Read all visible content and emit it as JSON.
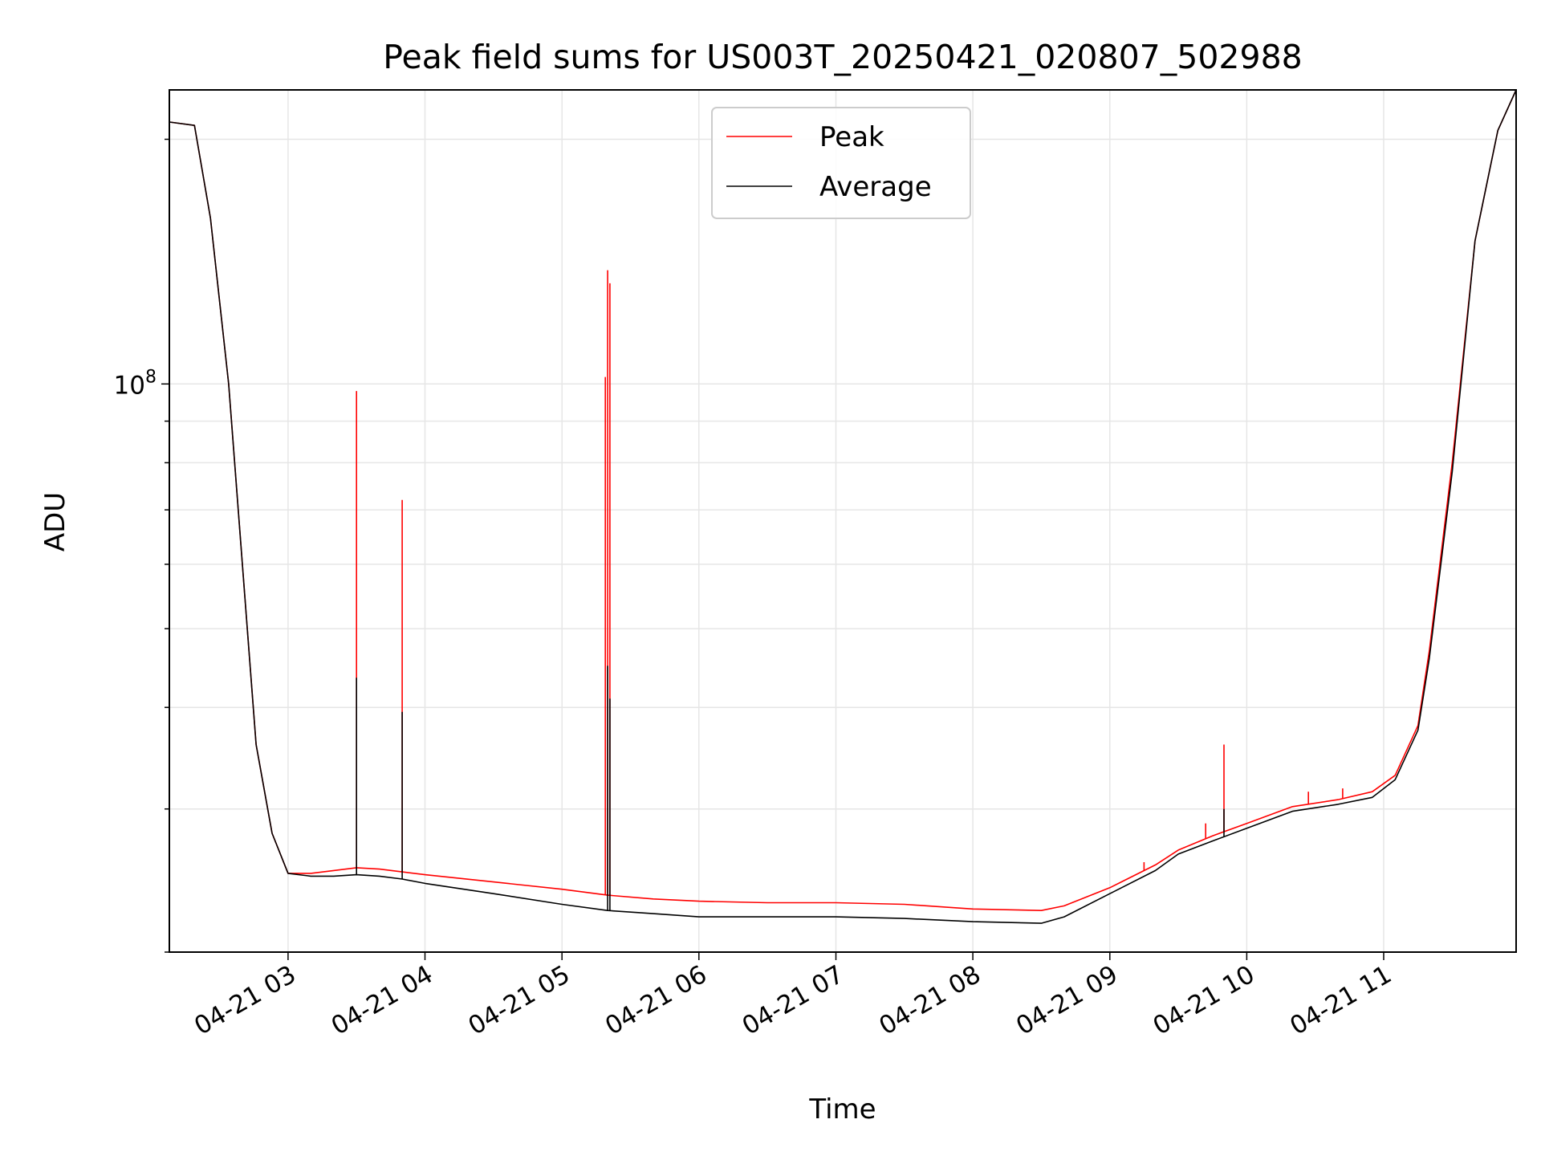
{
  "chart_data": {
    "type": "line",
    "title": "Peak field sums for US003T_20250421_020807_502988",
    "xlabel": "Time",
    "ylabel": "ADU",
    "yscale": "log",
    "grid": true,
    "legend_position": "top-center",
    "xlim": [
      "2025-04-21 02:08",
      "2025-04-21 11:58"
    ],
    "ylim": [
      20000000,
      230000000
    ],
    "x_ticks": [
      "04-21 03",
      "04-21 04",
      "04-21 05",
      "04-21 06",
      "04-21 07",
      "04-21 08",
      "04-21 09",
      "04-21 10",
      "04-21 11"
    ],
    "y_ticks": [
      {
        "label": "10",
        "exponent": "8",
        "value": 100000000
      }
    ],
    "series": [
      {
        "name": "Peak",
        "color": "#ff0000",
        "x": [
          "02:08",
          "02:19",
          "02:26",
          "02:34",
          "02:41",
          "02:46",
          "02:53",
          "03:00",
          "03:10",
          "03:20",
          "03:30",
          "03:40",
          "03:50",
          "04:00",
          "04:30",
          "05:00",
          "05:20",
          "05:40",
          "06:00",
          "06:30",
          "07:00",
          "07:30",
          "08:00",
          "08:30",
          "08:40",
          "09:00",
          "09:20",
          "09:30",
          "09:45",
          "10:00",
          "10:20",
          "10:40",
          "10:55",
          "11:05",
          "11:15",
          "11:20",
          "11:30",
          "11:40",
          "11:50",
          "11:58"
        ],
        "values": [
          210000000,
          208000000,
          160000000,
          100000000,
          55000000,
          36000000,
          28000000,
          25000000,
          25000000,
          25200000,
          25400000,
          25300000,
          25100000,
          24900000,
          24400000,
          23900000,
          23500000,
          23250000,
          23100000,
          23000000,
          23000000,
          22900000,
          22600000,
          22500000,
          22800000,
          24000000,
          25600000,
          26700000,
          27800000,
          28800000,
          30200000,
          30800000,
          31500000,
          33000000,
          38000000,
          47000000,
          80000000,
          150000000,
          205000000,
          230000000
        ],
        "spikes": [
          {
            "x": "03:30",
            "value": 98000000
          },
          {
            "x": "03:50",
            "value": 72000000
          },
          {
            "x": "05:19",
            "value": 102000000
          },
          {
            "x": "05:20",
            "value": 138000000
          },
          {
            "x": "05:21",
            "value": 133000000
          },
          {
            "x": "09:50",
            "value": 36000000
          },
          {
            "x": "10:27",
            "value": 31500000
          },
          {
            "x": "10:42",
            "value": 31800000
          },
          {
            "x": "09:15",
            "value": 25800000
          },
          {
            "x": "09:42",
            "value": 28800000
          }
        ]
      },
      {
        "name": "Average",
        "color": "#000000",
        "x": [
          "02:08",
          "02:19",
          "02:26",
          "02:34",
          "02:41",
          "02:46",
          "02:53",
          "03:00",
          "03:10",
          "03:20",
          "03:30",
          "03:40",
          "03:50",
          "04:00",
          "04:30",
          "05:00",
          "05:20",
          "05:40",
          "06:00",
          "06:30",
          "07:00",
          "07:30",
          "08:00",
          "08:30",
          "08:40",
          "09:00",
          "09:20",
          "09:30",
          "09:45",
          "10:00",
          "10:20",
          "10:40",
          "10:55",
          "11:05",
          "11:15",
          "11:20",
          "11:30",
          "11:40",
          "11:50",
          "11:58"
        ],
        "values": [
          210000000,
          208000000,
          160000000,
          100000000,
          55000000,
          36000000,
          28000000,
          25000000,
          24800000,
          24800000,
          24900000,
          24800000,
          24600000,
          24300000,
          23600000,
          22900000,
          22500000,
          22300000,
          22100000,
          22100000,
          22100000,
          22000000,
          21800000,
          21700000,
          22100000,
          23600000,
          25200000,
          26400000,
          27400000,
          28400000,
          29800000,
          30400000,
          31000000,
          32600000,
          37500000,
          46000000,
          78000000,
          150000000,
          205000000,
          230000000
        ],
        "spikes": [
          {
            "x": "03:30",
            "value": 43500000
          },
          {
            "x": "03:50",
            "value": 39500000
          },
          {
            "x": "05:20",
            "value": 45000000
          },
          {
            "x": "05:21",
            "value": 41000000
          },
          {
            "x": "09:50",
            "value": 30000000
          }
        ]
      }
    ]
  }
}
